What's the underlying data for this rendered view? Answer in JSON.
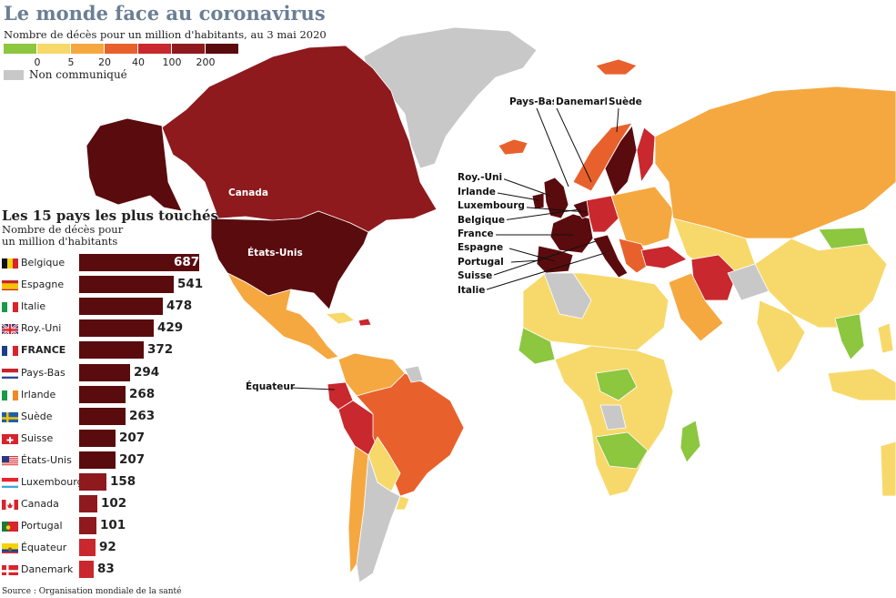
{
  "header": {
    "title": "Le monde face au coronavirus",
    "subtitle": "Nombre de décès pour un million d'habitants, au 3 mai 2020"
  },
  "legend": {
    "colors": [
      "#8dc63f",
      "#f7d96b",
      "#f5a840",
      "#e8612c",
      "#c8282e",
      "#8e1a1e",
      "#5a0b0e"
    ],
    "ticks": [
      "0",
      "5",
      "20",
      "40",
      "100",
      "200"
    ],
    "non_communique_label": "Non communiqué",
    "non_communique_color": "#c8c8c8"
  },
  "top15": {
    "title": "Les 15 pays les plus touchés",
    "subtitle": "Nombre de décès pour un million d'habitants",
    "rows": [
      {
        "name": "Belgique",
        "value": "687",
        "flag": "belgium"
      },
      {
        "name": "Espagne",
        "value": "541",
        "flag": "spain"
      },
      {
        "name": "Italie",
        "value": "478",
        "flag": "italy"
      },
      {
        "name": "Roy.-Uni",
        "value": "429",
        "flag": "uk"
      },
      {
        "name": "FRANCE",
        "value": "372",
        "flag": "france"
      },
      {
        "name": "Pays-Bas",
        "value": "294",
        "flag": "netherlands"
      },
      {
        "name": "Irlande",
        "value": "268",
        "flag": "ireland"
      },
      {
        "name": "Suède",
        "value": "263",
        "flag": "sweden"
      },
      {
        "name": "Suisse",
        "value": "207",
        "flag": "switzerland"
      },
      {
        "name": "États-Unis",
        "value": "207",
        "flag": "usa"
      },
      {
        "name": "Luxembourg",
        "value": "158",
        "flag": "luxembourg"
      },
      {
        "name": "Canada",
        "value": "102",
        "flag": "canada"
      },
      {
        "name": "Portugal",
        "value": "101",
        "flag": "portugal"
      },
      {
        "name": "Équateur",
        "value": "92",
        "flag": "ecuador"
      },
      {
        "name": "Danemark",
        "value": "83",
        "flag": "denmark"
      }
    ]
  },
  "map_labels": {
    "canada": "Canada",
    "usa": "États-Unis",
    "equateur": "Équateur",
    "pays_bas": "Pays-Bas",
    "danemark": "Danemark",
    "suede": "Suède",
    "roy_uni": "Roy.-Uni",
    "irlande": "Irlande",
    "luxembourg": "Luxembourg",
    "belgique": "Belgique",
    "france": "France",
    "espagne": "Espagne",
    "portugal": "Portugal",
    "suisse": "Suisse",
    "italie": "Italie"
  },
  "source": "Source : Organisation mondiale de la santé"
}
